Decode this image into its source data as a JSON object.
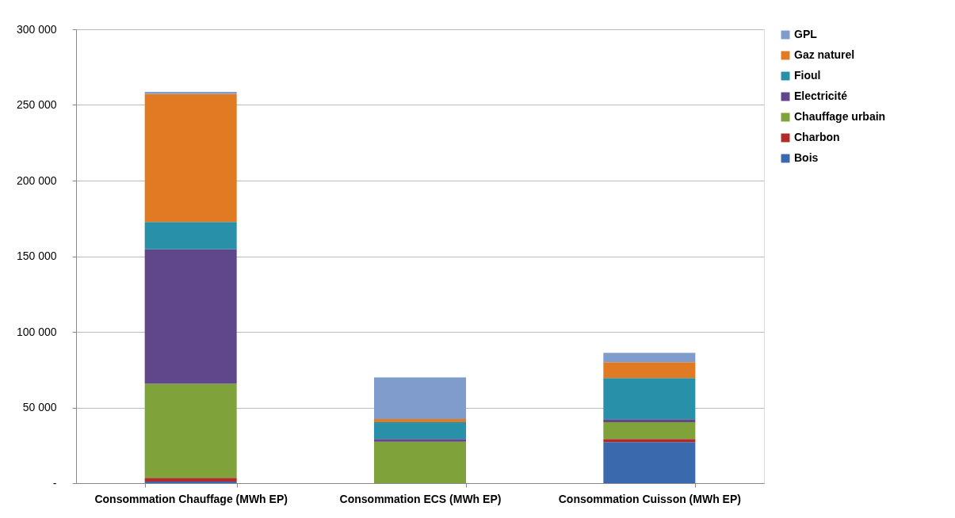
{
  "chart_data": {
    "type": "bar",
    "stacked": true,
    "categories": [
      "Consommation Chauffage (MWh EP)",
      "Consommation ECS (MWh EP)",
      "Consommation Cuisson (MWh EP)"
    ],
    "series": [
      {
        "name": "Bois",
        "color": "#3a6aad",
        "values": [
          1000,
          0,
          27100
        ]
      },
      {
        "name": "Charbon",
        "color": "#b02c2a",
        "values": [
          2500,
          0,
          2100
        ]
      },
      {
        "name": "Chauffage urbain",
        "color": "#7fa23b",
        "values": [
          62200,
          27300,
          11100
        ]
      },
      {
        "name": "Electricité",
        "color": "#60468a",
        "values": [
          88900,
          1900,
          2000
        ]
      },
      {
        "name": "Fioul",
        "color": "#2990aa",
        "values": [
          18100,
          11100,
          27200
        ]
      },
      {
        "name": "Gaz naturel",
        "color": "#e07b24",
        "values": [
          84600,
          2100,
          10500
        ]
      },
      {
        "name": "GPL",
        "color": "#7f9ccc",
        "values": [
          1400,
          27500,
          6100
        ]
      }
    ],
    "ylim": [
      0,
      300000
    ],
    "yticks": [
      {
        "value": 0,
        "label": "-"
      },
      {
        "value": 50000,
        "label": "50 000"
      },
      {
        "value": 100000,
        "label": "100 000"
      },
      {
        "value": 150000,
        "label": "150 000"
      },
      {
        "value": 200000,
        "label": "200 000"
      },
      {
        "value": 250000,
        "label": "250 000"
      },
      {
        "value": 300000,
        "label": "300 000"
      }
    ],
    "grid": "y",
    "legend": "right"
  }
}
